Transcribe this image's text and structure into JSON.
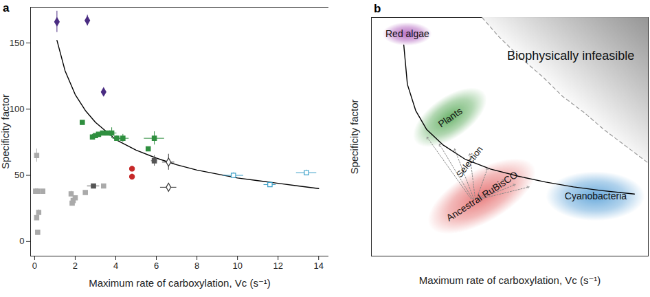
{
  "chart_data": [
    {
      "panel": "a",
      "type": "scatter",
      "xlabel": "Maximum rate of carboxylation, Vc (s⁻¹)",
      "ylabel": "Specificity factor",
      "xlim": [
        -0.2,
        14.5
      ],
      "ylim": [
        -11,
        177
      ],
      "xticks": [
        0,
        2,
        4,
        6,
        8,
        10,
        12,
        14
      ],
      "yticks": [
        0,
        50,
        100,
        150
      ],
      "series": [
        {
          "type": "line",
          "color": "#000000",
          "line_style": "solid",
          "x": [
            1.1,
            1.5,
            2,
            2.5,
            3,
            4,
            5,
            6,
            7,
            8,
            9,
            10,
            11,
            12,
            13,
            14
          ],
          "y": [
            152,
            129,
            111,
            99,
            90,
            77,
            69,
            63,
            58,
            54,
            51,
            48,
            46,
            44,
            42,
            40
          ]
        },
        {
          "type": "scatter",
          "color": "#aaaaaa",
          "marker": "square",
          "x": [
            0.1,
            0.05,
            0.15,
            0.4,
            0.1,
            0.2,
            0.15,
            1.8,
            1.9,
            2.0,
            2.5,
            3.4,
            1.85
          ],
          "y": [
            65,
            38,
            38,
            38,
            18,
            22,
            7,
            36,
            31,
            33,
            37,
            42,
            29
          ],
          "xerr": [
            0.05,
            0.05,
            0.05,
            0.05,
            0.05,
            0.05,
            0.05,
            0.05,
            0.05,
            0.05,
            0.05,
            0.05,
            0.05
          ],
          "yerr": [
            5,
            2,
            2,
            1,
            2,
            2,
            1,
            2,
            2,
            1,
            1,
            1,
            1
          ]
        },
        {
          "type": "scatter",
          "color": "#555555",
          "marker": "square",
          "x": [
            5.9,
            2.9
          ],
          "y": [
            61,
            42
          ],
          "xerr": [
            0.15,
            0.3
          ],
          "yerr": [
            4,
            1
          ]
        },
        {
          "type": "scatter",
          "color": "#4a2c82",
          "marker": "diamond",
          "x": [
            1.1,
            2.6,
            3.4
          ],
          "y": [
            166,
            167,
            113
          ],
          "xerr": [
            0.1,
            0.1,
            0.05
          ],
          "yerr": [
            8,
            4,
            2
          ]
        },
        {
          "type": "scatter",
          "color": "#2f8f3f",
          "marker": "square",
          "x": [
            2.35,
            2.85,
            3.0,
            3.15,
            3.35,
            3.6,
            3.8,
            4.05,
            4.35,
            5.6,
            5.9
          ],
          "y": [
            90,
            79,
            80,
            81,
            82,
            82,
            82,
            78,
            78,
            70,
            78
          ],
          "xerr": [
            0.1,
            0.1,
            0.1,
            0.1,
            0.1,
            0.1,
            0.25,
            0.2,
            0.3,
            0.1,
            0.5
          ],
          "yerr": [
            1,
            2,
            1.5,
            1,
            1,
            1.5,
            4,
            2,
            3,
            1.5,
            5
          ]
        },
        {
          "type": "scatter",
          "color": "#c62828",
          "marker": "circle",
          "x": [
            4.8,
            4.8
          ],
          "y": [
            55,
            49
          ],
          "xerr": [
            0.05,
            0.05
          ],
          "yerr": [
            2,
            2
          ]
        },
        {
          "type": "scatter",
          "color": "#3a9fc8",
          "marker": "open_square",
          "x": [
            9.8,
            11.6,
            13.4
          ],
          "y": [
            50,
            43,
            52
          ],
          "xerr": [
            0.5,
            0.3,
            0.5
          ],
          "yerr": [
            2,
            1,
            2
          ]
        },
        {
          "type": "scatter",
          "color": "#333333",
          "marker": "open_diamond",
          "x": [
            6.6,
            6.6
          ],
          "y": [
            60,
            41
          ],
          "xerr": [
            0.3,
            0.4
          ],
          "yerr": [
            6,
            2
          ]
        }
      ]
    },
    {
      "panel": "b",
      "type": "diagram",
      "xlabel": "Maximum rate of carboxylation, Vc (s⁻¹)",
      "ylabel": "Specificity factor",
      "xlim": [
        0,
        1
      ],
      "ylim": [
        0,
        1
      ],
      "xticks": [],
      "yticks": [],
      "tick_labels": false,
      "series": [
        {
          "type": "boundary",
          "color": "#999999",
          "line_style": "dashed",
          "x": [
            0.4,
            0.46,
            0.54,
            0.62,
            0.69,
            0.77,
            0.84,
            0.92,
            1.0
          ],
          "y": [
            1.0,
            0.92,
            0.83,
            0.75,
            0.67,
            0.6,
            0.53,
            0.46,
            0.39
          ]
        },
        {
          "type": "line",
          "color": "#000000",
          "line_style": "solid",
          "x": [
            0.117,
            0.13,
            0.16,
            0.2,
            0.26,
            0.34,
            0.43,
            0.53,
            0.63,
            0.73,
            0.83,
            0.95
          ],
          "y": [
            0.885,
            0.72,
            0.61,
            0.53,
            0.465,
            0.405,
            0.365,
            0.335,
            0.31,
            0.29,
            0.275,
            0.26
          ]
        }
      ],
      "regions": [
        {
          "label": "Red algae",
          "x": 0.13,
          "y": 0.93,
          "color": "#a040b0"
        },
        {
          "label": "Plants",
          "x": 0.285,
          "y": 0.58,
          "color": "#3a9a3a"
        },
        {
          "label": "Ancestral RuBisCO",
          "x": 0.4,
          "y": 0.25,
          "color": "#e05050"
        },
        {
          "label": "Cyanobacteria",
          "x": 0.81,
          "y": 0.25,
          "color": "#3a8fd0"
        }
      ],
      "annotations": [
        {
          "text": "Biophysically infeasible",
          "x": 0.72,
          "y": 0.84
        },
        {
          "text": "Selection",
          "x": 0.355,
          "y": 0.395
        }
      ],
      "arrows": [
        {
          "x1": 0.36,
          "y1": 0.24,
          "x2": 0.2,
          "y2": 0.5
        },
        {
          "x1": 0.365,
          "y1": 0.24,
          "x2": 0.245,
          "y2": 0.47
        },
        {
          "x1": 0.37,
          "y1": 0.24,
          "x2": 0.3,
          "y2": 0.45
        },
        {
          "x1": 0.375,
          "y1": 0.24,
          "x2": 0.355,
          "y2": 0.43
        },
        {
          "x1": 0.38,
          "y1": 0.24,
          "x2": 0.42,
          "y2": 0.37
        },
        {
          "x1": 0.385,
          "y1": 0.24,
          "x2": 0.48,
          "y2": 0.32
        },
        {
          "x1": 0.39,
          "y1": 0.24,
          "x2": 0.52,
          "y2": 0.3
        },
        {
          "x1": 0.395,
          "y1": 0.24,
          "x2": 0.57,
          "y2": 0.29
        }
      ]
    }
  ]
}
